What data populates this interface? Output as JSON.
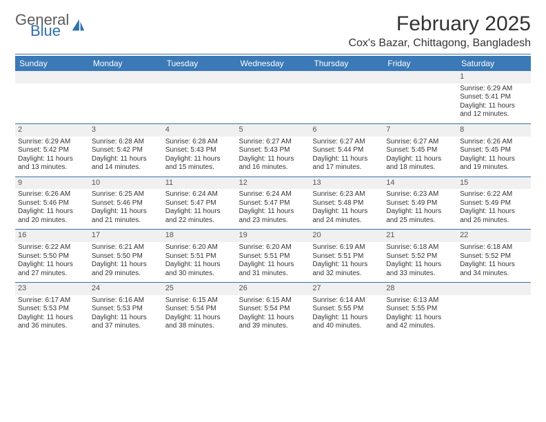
{
  "brand": {
    "word1": "General",
    "word2": "Blue"
  },
  "title": "February 2025",
  "location": "Cox's Bazar, Chittagong, Bangladesh",
  "colors": {
    "header_bg": "#3b79b7",
    "header_text": "#ffffff",
    "rule": "#3a6ea5",
    "daynum_bg": "#f0f0f0",
    "body_text": "#333333",
    "logo_gray": "#5a5a5a",
    "logo_blue": "#2f6fad"
  },
  "weekdays": [
    "Sunday",
    "Monday",
    "Tuesday",
    "Wednesday",
    "Thursday",
    "Friday",
    "Saturday"
  ],
  "weeks": [
    [
      null,
      null,
      null,
      null,
      null,
      null,
      {
        "n": "1",
        "sr": "Sunrise: 6:29 AM",
        "ss": "Sunset: 5:41 PM",
        "d1": "Daylight: 11 hours",
        "d2": "and 12 minutes."
      }
    ],
    [
      {
        "n": "2",
        "sr": "Sunrise: 6:29 AM",
        "ss": "Sunset: 5:42 PM",
        "d1": "Daylight: 11 hours",
        "d2": "and 13 minutes."
      },
      {
        "n": "3",
        "sr": "Sunrise: 6:28 AM",
        "ss": "Sunset: 5:42 PM",
        "d1": "Daylight: 11 hours",
        "d2": "and 14 minutes."
      },
      {
        "n": "4",
        "sr": "Sunrise: 6:28 AM",
        "ss": "Sunset: 5:43 PM",
        "d1": "Daylight: 11 hours",
        "d2": "and 15 minutes."
      },
      {
        "n": "5",
        "sr": "Sunrise: 6:27 AM",
        "ss": "Sunset: 5:43 PM",
        "d1": "Daylight: 11 hours",
        "d2": "and 16 minutes."
      },
      {
        "n": "6",
        "sr": "Sunrise: 6:27 AM",
        "ss": "Sunset: 5:44 PM",
        "d1": "Daylight: 11 hours",
        "d2": "and 17 minutes."
      },
      {
        "n": "7",
        "sr": "Sunrise: 6:27 AM",
        "ss": "Sunset: 5:45 PM",
        "d1": "Daylight: 11 hours",
        "d2": "and 18 minutes."
      },
      {
        "n": "8",
        "sr": "Sunrise: 6:26 AM",
        "ss": "Sunset: 5:45 PM",
        "d1": "Daylight: 11 hours",
        "d2": "and 19 minutes."
      }
    ],
    [
      {
        "n": "9",
        "sr": "Sunrise: 6:26 AM",
        "ss": "Sunset: 5:46 PM",
        "d1": "Daylight: 11 hours",
        "d2": "and 20 minutes."
      },
      {
        "n": "10",
        "sr": "Sunrise: 6:25 AM",
        "ss": "Sunset: 5:46 PM",
        "d1": "Daylight: 11 hours",
        "d2": "and 21 minutes."
      },
      {
        "n": "11",
        "sr": "Sunrise: 6:24 AM",
        "ss": "Sunset: 5:47 PM",
        "d1": "Daylight: 11 hours",
        "d2": "and 22 minutes."
      },
      {
        "n": "12",
        "sr": "Sunrise: 6:24 AM",
        "ss": "Sunset: 5:47 PM",
        "d1": "Daylight: 11 hours",
        "d2": "and 23 minutes."
      },
      {
        "n": "13",
        "sr": "Sunrise: 6:23 AM",
        "ss": "Sunset: 5:48 PM",
        "d1": "Daylight: 11 hours",
        "d2": "and 24 minutes."
      },
      {
        "n": "14",
        "sr": "Sunrise: 6:23 AM",
        "ss": "Sunset: 5:49 PM",
        "d1": "Daylight: 11 hours",
        "d2": "and 25 minutes."
      },
      {
        "n": "15",
        "sr": "Sunrise: 6:22 AM",
        "ss": "Sunset: 5:49 PM",
        "d1": "Daylight: 11 hours",
        "d2": "and 26 minutes."
      }
    ],
    [
      {
        "n": "16",
        "sr": "Sunrise: 6:22 AM",
        "ss": "Sunset: 5:50 PM",
        "d1": "Daylight: 11 hours",
        "d2": "and 27 minutes."
      },
      {
        "n": "17",
        "sr": "Sunrise: 6:21 AM",
        "ss": "Sunset: 5:50 PM",
        "d1": "Daylight: 11 hours",
        "d2": "and 29 minutes."
      },
      {
        "n": "18",
        "sr": "Sunrise: 6:20 AM",
        "ss": "Sunset: 5:51 PM",
        "d1": "Daylight: 11 hours",
        "d2": "and 30 minutes."
      },
      {
        "n": "19",
        "sr": "Sunrise: 6:20 AM",
        "ss": "Sunset: 5:51 PM",
        "d1": "Daylight: 11 hours",
        "d2": "and 31 minutes."
      },
      {
        "n": "20",
        "sr": "Sunrise: 6:19 AM",
        "ss": "Sunset: 5:51 PM",
        "d1": "Daylight: 11 hours",
        "d2": "and 32 minutes."
      },
      {
        "n": "21",
        "sr": "Sunrise: 6:18 AM",
        "ss": "Sunset: 5:52 PM",
        "d1": "Daylight: 11 hours",
        "d2": "and 33 minutes."
      },
      {
        "n": "22",
        "sr": "Sunrise: 6:18 AM",
        "ss": "Sunset: 5:52 PM",
        "d1": "Daylight: 11 hours",
        "d2": "and 34 minutes."
      }
    ],
    [
      {
        "n": "23",
        "sr": "Sunrise: 6:17 AM",
        "ss": "Sunset: 5:53 PM",
        "d1": "Daylight: 11 hours",
        "d2": "and 36 minutes."
      },
      {
        "n": "24",
        "sr": "Sunrise: 6:16 AM",
        "ss": "Sunset: 5:53 PM",
        "d1": "Daylight: 11 hours",
        "d2": "and 37 minutes."
      },
      {
        "n": "25",
        "sr": "Sunrise: 6:15 AM",
        "ss": "Sunset: 5:54 PM",
        "d1": "Daylight: 11 hours",
        "d2": "and 38 minutes."
      },
      {
        "n": "26",
        "sr": "Sunrise: 6:15 AM",
        "ss": "Sunset: 5:54 PM",
        "d1": "Daylight: 11 hours",
        "d2": "and 39 minutes."
      },
      {
        "n": "27",
        "sr": "Sunrise: 6:14 AM",
        "ss": "Sunset: 5:55 PM",
        "d1": "Daylight: 11 hours",
        "d2": "and 40 minutes."
      },
      {
        "n": "28",
        "sr": "Sunrise: 6:13 AM",
        "ss": "Sunset: 5:55 PM",
        "d1": "Daylight: 11 hours",
        "d2": "and 42 minutes."
      },
      null
    ]
  ]
}
